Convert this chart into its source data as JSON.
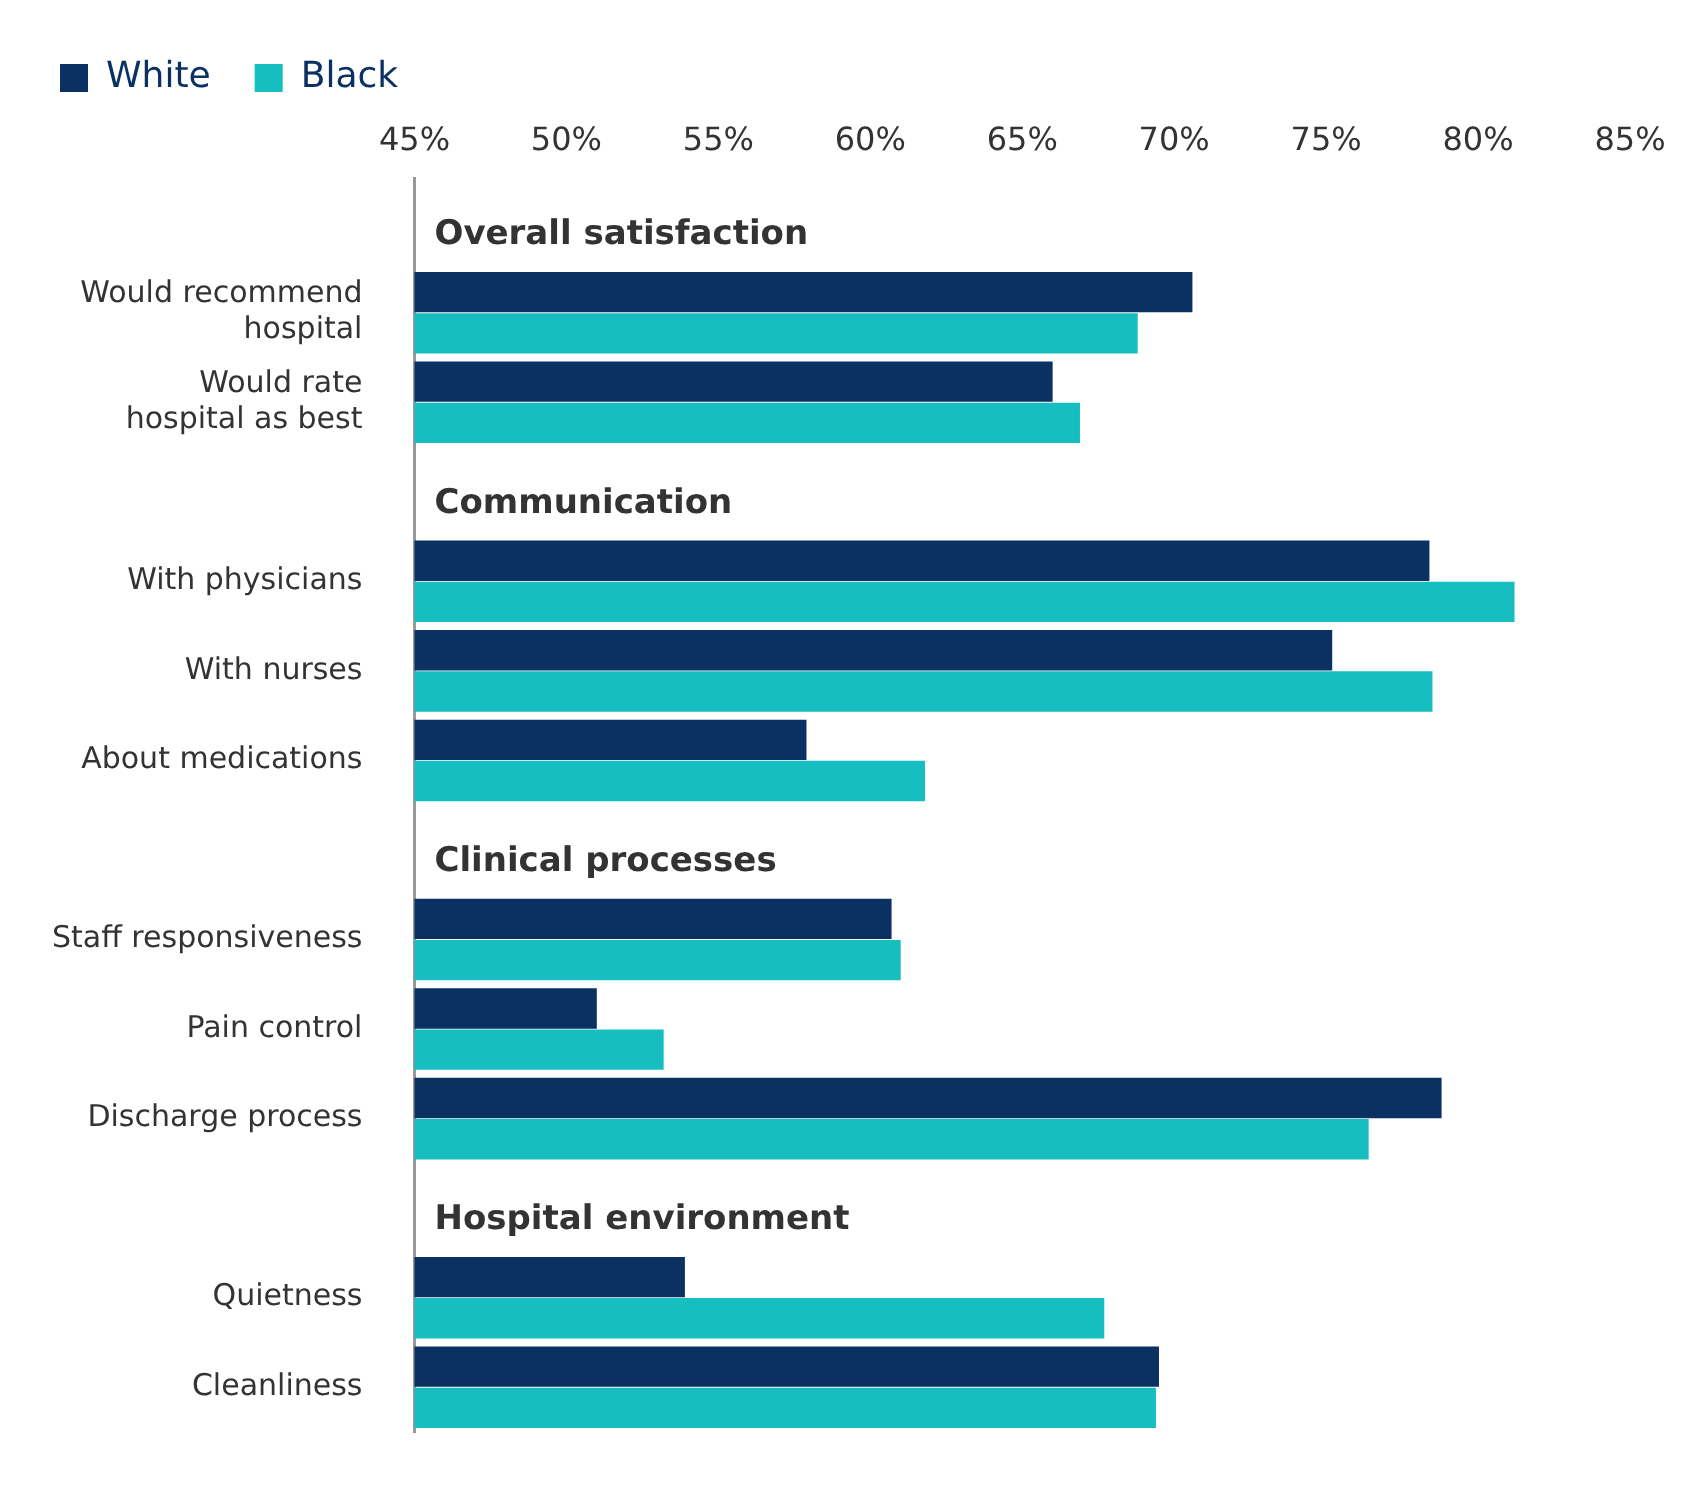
{
  "chart_data": {
    "type": "bar",
    "orientation": "horizontal",
    "legend": "top left",
    "grid": false,
    "categories": [
      null,
      "Would recommend hospital",
      "Would rate hospital as best",
      null,
      "With physicians",
      "With nurses",
      "About medications",
      null,
      "Staff responsiveness",
      "Pain control",
      "Discharge process",
      null,
      "Quietness",
      "Cleanliness"
    ],
    "annotations": [
      "Overall satisfaction",
      "Communication",
      "Clinical processes",
      "Hospital environment"
    ],
    "series": [
      {
        "name": "White",
        "color": "#0b3163",
        "values": [
          null,
          70.6,
          66.0,
          null,
          78.4,
          75.2,
          57.9,
          null,
          60.7,
          51.0,
          78.8,
          null,
          53.9,
          69.5
        ]
      },
      {
        "name": "Black",
        "color": "#16bec2",
        "values": [
          null,
          68.8,
          66.9,
          null,
          81.2,
          78.5,
          61.8,
          null,
          61.0,
          53.2,
          76.4,
          null,
          67.7,
          69.4
        ]
      }
    ],
    "xlim": [
      45,
      85
    ],
    "xticks": [
      {
        "value": 45,
        "label": "45%"
      },
      {
        "value": 50,
        "label": "50%"
      },
      {
        "value": 55,
        "label": "55%"
      },
      {
        "value": 60,
        "label": "60%"
      },
      {
        "value": 65,
        "label": "65%"
      },
      {
        "value": 70,
        "label": "70%"
      },
      {
        "value": 75,
        "label": "75%"
      },
      {
        "value": 80,
        "label": "80%"
      },
      {
        "value": 85,
        "label": "85%"
      }
    ]
  }
}
